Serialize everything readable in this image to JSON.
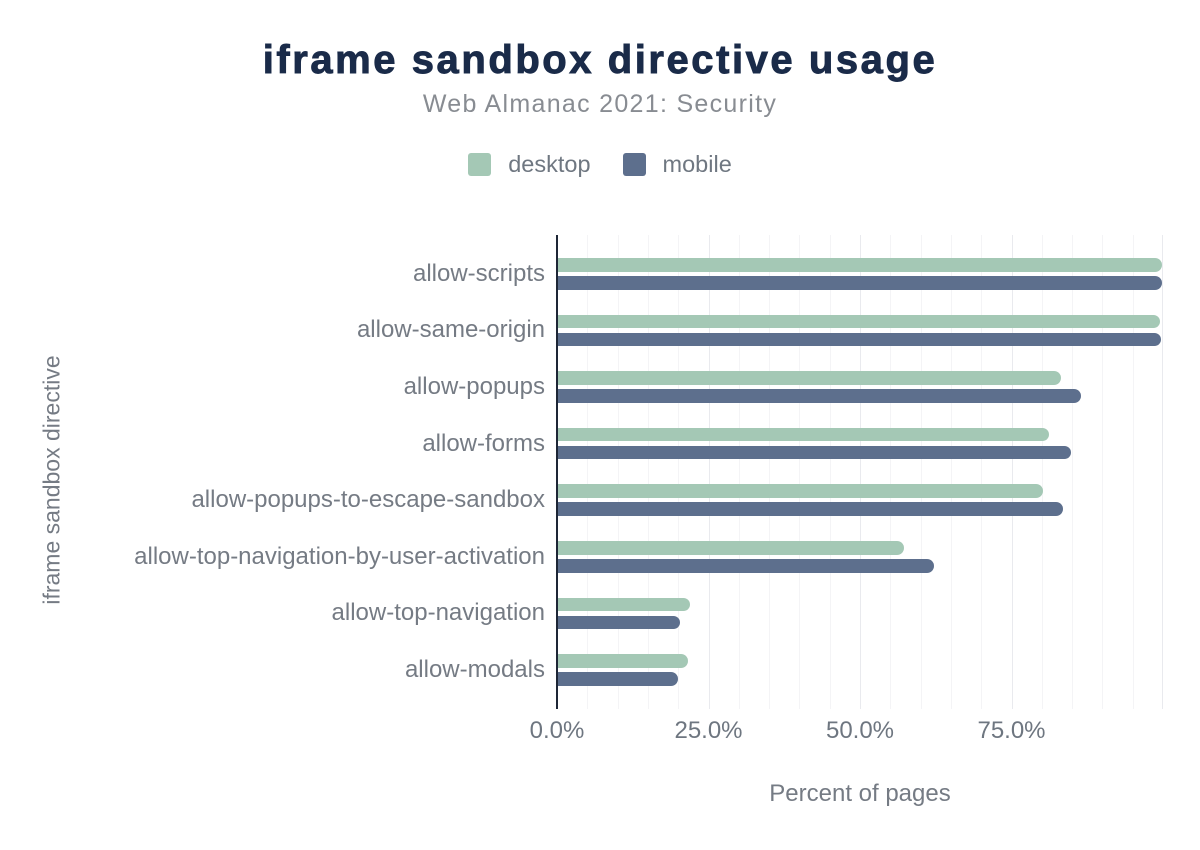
{
  "chart_data": {
    "type": "bar",
    "orientation": "horizontal",
    "title": "iframe sandbox directive usage",
    "subtitle": "Web Almanac 2021: Security",
    "xlabel": "Percent of pages",
    "ylabel": "iframe sandbox directive",
    "categories": [
      "allow-scripts",
      "allow-same-origin",
      "allow-popups",
      "allow-forms",
      "allow-popups-to-escape-sandbox",
      "allow-top-navigation-by-user-activation",
      "allow-top-navigation",
      "allow-modals"
    ],
    "series": [
      {
        "name": "desktop",
        "color": "#a4c8b5",
        "values": [
          99.9,
          99.5,
          83.1,
          81.2,
          80.2,
          57.2,
          21.9,
          21.6
        ]
      },
      {
        "name": "mobile",
        "color": "#5d6f8d",
        "values": [
          99.8,
          99.6,
          86.5,
          84.9,
          83.5,
          62.2,
          20.3,
          20.0
        ]
      }
    ],
    "xlim": [
      0,
      100
    ],
    "xticks": [
      0,
      25,
      50,
      75
    ],
    "xtick_labels": [
      "0.0%",
      "25.0%",
      "50.0%",
      "75.0%"
    ],
    "grid": {
      "minor_step_percent": 5,
      "major_step_percent": 25,
      "legend_position": "top"
    }
  },
  "colors": {
    "background": "#ffffff",
    "title": "#1a2b49",
    "subtitle": "#888c92",
    "axis_text": "#757b84",
    "axis_line": "#1e2636",
    "gridline_minor": "#f4f4f6",
    "gridline_major": "#e9eaee",
    "desktop": "#a4c8b5",
    "mobile": "#5d6f8d"
  }
}
